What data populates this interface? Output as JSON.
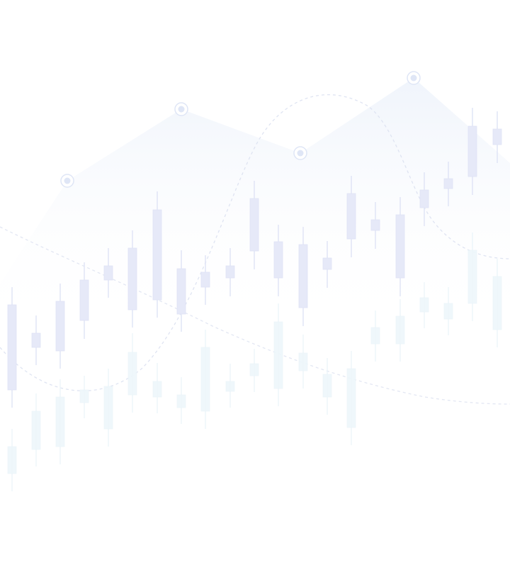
{
  "theme": {
    "candle_color": "#e6e9f8",
    "candle_border": "#dfe3f5",
    "ghost_candle_color": "#eef7fb",
    "curve_color": "#e3e7f3",
    "area_color": "#eef3fb",
    "marker_color": "#dfe6f6",
    "background": "#ffffff"
  },
  "decoration": {
    "icons": [
      "candlestick-chart-icon",
      "marker-pin-icon"
    ]
  }
}
